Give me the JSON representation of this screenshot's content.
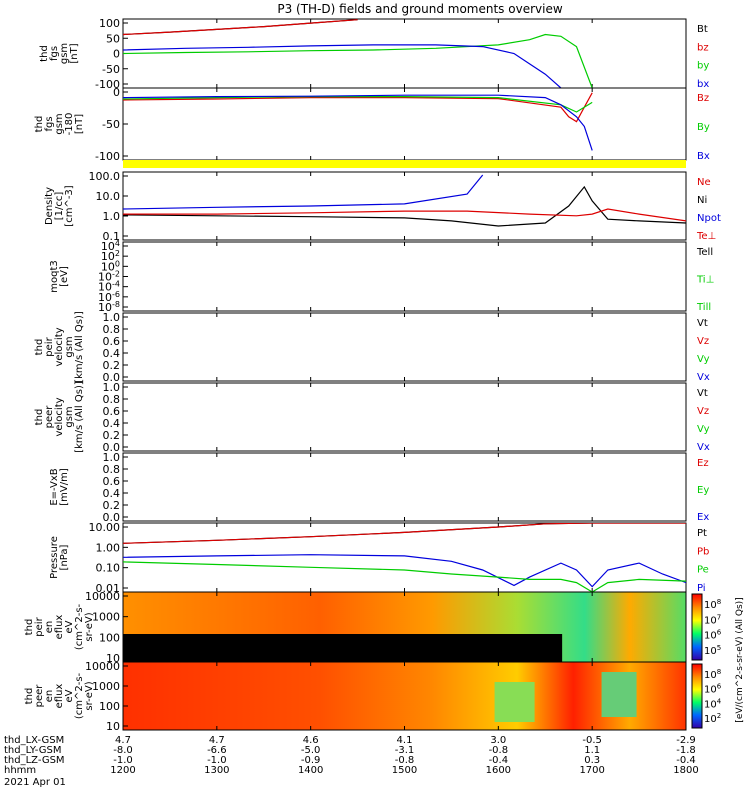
{
  "title": "P3 (TH-D) fields and ground moments overview",
  "colors": {
    "black": "#000000",
    "red": "#dd0000",
    "green": "#00cc00",
    "blue": "#0000dd",
    "yellow": "#ffff00"
  },
  "chart_data": {
    "type": "line",
    "time_axis": {
      "ticks": [
        "1200",
        "1300",
        "1400",
        "1500",
        "1600",
        "1700",
        "1800"
      ],
      "range_minutes": [
        0,
        360
      ],
      "date": "2021 Apr 01",
      "row_labels": [
        "thd_LX-GSM",
        "thd_LY-GSM",
        "thd_LZ-GSM",
        "hhmm"
      ],
      "rows": [
        [
          "4.7",
          "4.7",
          "4.6",
          "4.1",
          "3.0",
          "-0.5",
          "-2.9"
        ],
        [
          "-8.0",
          "-6.6",
          "-5.0",
          "-3.1",
          "-0.8",
          "1.1",
          "-1.8"
        ],
        [
          "-1.0",
          "-1.0",
          "-0.9",
          "-0.8",
          "-0.4",
          "0.3",
          "-0.4"
        ]
      ]
    },
    "panels": [
      {
        "id": "fgs",
        "ylabel": [
          "thd",
          "fgs",
          "gsm",
          "[nT]"
        ],
        "ylim": [
          -100,
          100
        ],
        "yticks": [
          "100",
          "50",
          "0",
          "-50",
          "-100"
        ],
        "legend": [
          {
            "name": "Bt",
            "color": "#000000"
          },
          {
            "name": "bz",
            "color": "#dd0000"
          },
          {
            "name": "by",
            "color": "#00cc00"
          },
          {
            "name": "bx",
            "color": "#0000dd"
          }
        ],
        "series": [
          {
            "name": "Bt",
            "color": "#000000",
            "x": [
              0,
              30,
              60,
              90,
              120,
              150
            ],
            "y": [
              55,
              62,
              70,
              78,
              88,
              98
            ]
          },
          {
            "name": "bz",
            "color": "#dd0000",
            "x": [
              0,
              30,
              60,
              90,
              120,
              150
            ],
            "y": [
              55,
              62,
              70,
              78,
              88,
              98
            ]
          },
          {
            "name": "by",
            "color": "#00cc00",
            "x": [
              0,
              40,
              80,
              120,
              160,
              200,
              240,
              260,
              270,
              280,
              290,
              300
            ],
            "y": [
              0,
              3,
              5,
              8,
              10,
              15,
              25,
              40,
              55,
              50,
              20,
              -100
            ]
          },
          {
            "name": "bx",
            "color": "#0000dd",
            "x": [
              0,
              40,
              80,
              120,
              160,
              200,
              230,
              250,
              260,
              270,
              275,
              280
            ],
            "y": [
              10,
              15,
              18,
              22,
              25,
              25,
              20,
              0,
              -30,
              -60,
              -80,
              -100
            ]
          }
        ]
      },
      {
        "id": "fgs_dsl",
        "ylabel": [
          "thd",
          "fgs",
          "gsm",
          "-180",
          "[nT]"
        ],
        "ylim": [
          -130,
          20
        ],
        "yticks": [
          "0",
          "-50",
          "-100"
        ],
        "legend": [
          {
            "name": "Bz",
            "color": "#dd0000"
          },
          {
            "name": "By",
            "color": "#00cc00"
          },
          {
            "name": "Bx",
            "color": "#0000dd"
          }
        ],
        "series": [
          {
            "name": "Bz",
            "color": "#dd0000",
            "x": [
              0,
              60,
              120,
              180,
              240,
              280,
              285,
              290,
              295,
              300
            ],
            "y": [
              -5,
              -3,
              0,
              0,
              -2,
              -20,
              -40,
              -50,
              -20,
              10
            ]
          },
          {
            "name": "By",
            "color": "#00cc00",
            "x": [
              0,
              60,
              120,
              180,
              240,
              280,
              290,
              300
            ],
            "y": [
              -3,
              0,
              2,
              2,
              0,
              -15,
              -30,
              -10
            ]
          },
          {
            "name": "Bx",
            "color": "#0000dd",
            "x": [
              0,
              60,
              120,
              180,
              240,
              270,
              280,
              290,
              295,
              300
            ],
            "y": [
              0,
              2,
              3,
              5,
              5,
              0,
              -15,
              -40,
              -60,
              -110
            ]
          }
        ]
      },
      {
        "id": "density",
        "ylabel": [
          "Density",
          "[1/cc]",
          "[cm^-3]"
        ],
        "ylim_log": [
          0.03,
          300
        ],
        "yticks": [
          "100.0",
          "10.0",
          "1.0",
          "0.1"
        ],
        "legend": [
          {
            "name": "Ne",
            "color": "#dd0000"
          },
          {
            "name": "Ni",
            "color": "#000000"
          },
          {
            "name": "Npot",
            "color": "#0000dd"
          },
          {
            "name": "Te⊥",
            "color": "#dd0000"
          }
        ],
        "series": [
          {
            "name": "Ni",
            "color": "#000000",
            "x": [
              0,
              60,
              120,
              180,
              210,
              240,
              270,
              285,
              295,
              300,
              310,
              330,
              360
            ],
            "y": [
              0.9,
              0.8,
              0.7,
              0.6,
              0.4,
              0.2,
              0.3,
              3,
              40,
              6,
              0.5,
              0.4,
              0.3
            ]
          },
          {
            "name": "Ne",
            "color": "#dd0000",
            "x": [
              0,
              60,
              120,
              180,
              220,
              260,
              290,
              300,
              310,
              330,
              360
            ],
            "y": [
              1,
              1,
              1.2,
              1.5,
              1.5,
              1,
              0.8,
              1,
              2,
              1,
              0.4
            ]
          },
          {
            "name": "Npot",
            "color": "#0000dd",
            "x": [
              0,
              60,
              120,
              180,
              220,
              230
            ],
            "y": [
              2,
              2.5,
              3,
              4,
              15,
              200
            ]
          }
        ]
      },
      {
        "id": "moqt3",
        "ylabel": [
          "moqt3",
          "[eV]"
        ],
        "yticks": [
          "10^4",
          "10^2",
          "10^0",
          "10^-2",
          "10^-4",
          "10^-6",
          "10^-8"
        ],
        "legend": [
          {
            "name": "Tell",
            "color": "#000000"
          },
          {
            "name": "Ti⊥",
            "color": "#00cc00"
          },
          {
            "name": "Till",
            "color": "#00cc00"
          }
        ],
        "series": []
      },
      {
        "id": "peir_velocity",
        "ylabel": [
          "thd",
          "peir",
          "velocity",
          "gsm",
          "[km/s (All Qs)]"
        ],
        "ylim": [
          0,
          1
        ],
        "yticks": [
          "1.0",
          "0.8",
          "0.6",
          "0.4",
          "0.2",
          "0.0"
        ],
        "legend": [
          {
            "name": "Vt",
            "color": "#000000"
          },
          {
            "name": "Vz",
            "color": "#dd0000"
          },
          {
            "name": "Vy",
            "color": "#00cc00"
          },
          {
            "name": "Vx",
            "color": "#0000dd"
          }
        ],
        "series": []
      },
      {
        "id": "peer_velocity",
        "ylabel": [
          "thd",
          "peer",
          "velocity",
          "gsm",
          "[km/s (All Qs)]"
        ],
        "ylim": [
          0,
          1
        ],
        "yticks": [
          "1.0",
          "0.8",
          "0.6",
          "0.4",
          "0.2",
          "0.0"
        ],
        "legend": [
          {
            "name": "Vt",
            "color": "#000000"
          },
          {
            "name": "Vz",
            "color": "#dd0000"
          },
          {
            "name": "Vy",
            "color": "#00cc00"
          },
          {
            "name": "Vx",
            "color": "#0000dd"
          }
        ],
        "series": []
      },
      {
        "id": "efield",
        "ylabel": [
          "E=-VxB",
          "[mV/m]"
        ],
        "ylim": [
          0,
          1
        ],
        "yticks": [
          "1.0",
          "0.8",
          "0.6",
          "0.4",
          "0.2",
          "0.0"
        ],
        "legend": [
          {
            "name": "Ez",
            "color": "#dd0000"
          },
          {
            "name": "Ey",
            "color": "#00cc00"
          },
          {
            "name": "Ex",
            "color": "#0000dd"
          }
        ],
        "series": []
      },
      {
        "id": "pressure",
        "ylabel": [
          "Pressure",
          "[nPa]"
        ],
        "ylim_log": [
          0.003,
          20
        ],
        "yticks": [
          "10.00",
          "1.00",
          "0.10",
          "0.01"
        ],
        "legend": [
          {
            "name": "Pt",
            "color": "#000000"
          },
          {
            "name": "Pb",
            "color": "#dd0000"
          },
          {
            "name": "Pe",
            "color": "#00cc00"
          },
          {
            "name": "Pi",
            "color": "#0000dd"
          }
        ],
        "series": [
          {
            "name": "Pt",
            "color": "#000000",
            "x": [
              0,
              60,
              120,
              180,
              240,
              270,
              300,
              330,
              360
            ],
            "y": [
              1.5,
              2.2,
              3.5,
              6,
              12,
              18,
              20,
              20,
              20
            ]
          },
          {
            "name": "Pb",
            "color": "#dd0000",
            "x": [
              0,
              60,
              120,
              180,
              240,
              270,
              300,
              330,
              360
            ],
            "y": [
              1.5,
              2.2,
              3.5,
              6,
              12,
              18,
              20,
              20,
              20
            ]
          },
          {
            "name": "Pi",
            "color": "#0000dd",
            "x": [
              0,
              60,
              120,
              180,
              210,
              230,
              250,
              260,
              280,
              290,
              300,
              310,
              330,
              345,
              360
            ],
            "y": [
              0.25,
              0.3,
              0.35,
              0.3,
              0.15,
              0.05,
              0.007,
              0.02,
              0.12,
              0.05,
              0.006,
              0.05,
              0.12,
              0.03,
              0.01
            ]
          },
          {
            "name": "Pe",
            "color": "#00cc00",
            "x": [
              0,
              60,
              120,
              180,
              210,
              240,
              260,
              280,
              290,
              300,
              310,
              330,
              360
            ],
            "y": [
              0.14,
              0.1,
              0.07,
              0.05,
              0.03,
              0.02,
              0.015,
              0.015,
              0.01,
              0.003,
              0.01,
              0.015,
              0.012
            ]
          }
        ]
      },
      {
        "id": "peir_eflux",
        "ylabel": [
          "thd",
          "peir",
          "en",
          "eflux",
          "eV",
          "(cm^2-s-",
          "sr-eV)"
        ],
        "ylim_log": [
          5,
          20000
        ],
        "yticks": [
          "10000",
          "1000",
          "100",
          "10"
        ],
        "colorbar_ticks": [
          "10^8",
          "10^7",
          "10^6",
          "10^5"
        ]
      },
      {
        "id": "peer_eflux",
        "ylabel": [
          "thd",
          "peer",
          "en",
          "eflux",
          "eV",
          "(cm^2-s-",
          "sr-eV)"
        ],
        "ylim_log": [
          5,
          20000
        ],
        "yticks": [
          "10000",
          "1000",
          "100",
          "10"
        ],
        "colorbar_ticks": [
          "10^8",
          "10^6",
          "10^4",
          "10^2"
        ]
      }
    ],
    "colorbar_label": "[eV/(cm^2-s-sr-eV) (All Qs)]"
  }
}
